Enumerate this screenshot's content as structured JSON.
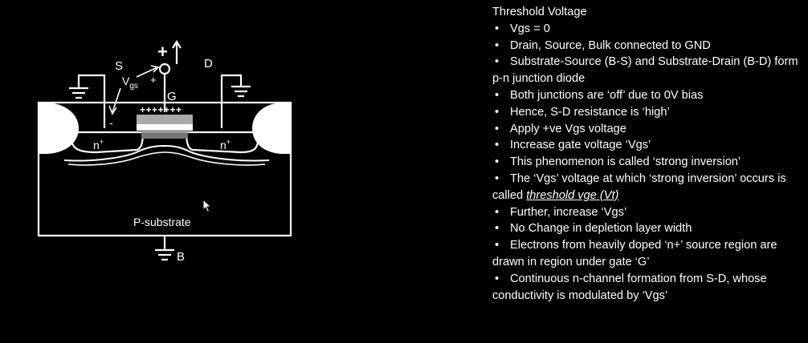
{
  "diagram": {
    "labels": {
      "source": "S",
      "drain": "D",
      "gate": "G",
      "bulk": "B",
      "vgs_main": "V",
      "vgs_sub": "gs",
      "plus_big": "+",
      "plus_small": "+",
      "minus": "-",
      "gate_charge": "+++++++",
      "n_left": "n",
      "n_right": "n",
      "n_sup": "+",
      "substrate": "P-substrate"
    }
  },
  "notes": {
    "heading": "Threshold Voltage",
    "items": [
      {
        "bullet": "•",
        "text": "Vgs = 0"
      },
      {
        "bullet": "•",
        "text": "Drain, Source, Bulk connected to GND"
      },
      {
        "bullet": "•",
        "text": "Substrate-Source (B-S) and Substrate-Drain (B-D) form p-n junction diode"
      },
      {
        "bullet": "•",
        "text": "Both junctions are ‘off’ due to 0V bias"
      },
      {
        "bullet": "•",
        "text": "Hence, S-D resistance is ‘high’"
      },
      {
        "bullet": "•",
        "text": "Apply +ve Vgs voltage"
      },
      {
        "bullet": "•",
        "text": "Increase gate voltage ‘Vgs’"
      },
      {
        "bullet": "•",
        "text": "This phenomenon is called ‘strong inversion’"
      },
      {
        "bullet": "•",
        "text": "The ‘Vgs’ voltage at which ‘strong inversion’ occurs is called ",
        "emphasis": "threshold vge (Vt)"
      },
      {
        "bullet": "•",
        "text": "Further, increase ‘Vgs’"
      },
      {
        "bullet": "•",
        "text": "No Change in depletion layer width"
      },
      {
        "bullet": "•",
        "text": "Electrons from heavily doped ‘n+’ source region are drawn in region under gate ‘G’"
      },
      {
        "bullet": "•",
        "text": "Continuous n-channel formation from S-D, whose conductivity is modulated by ‘Vgs’"
      }
    ]
  }
}
